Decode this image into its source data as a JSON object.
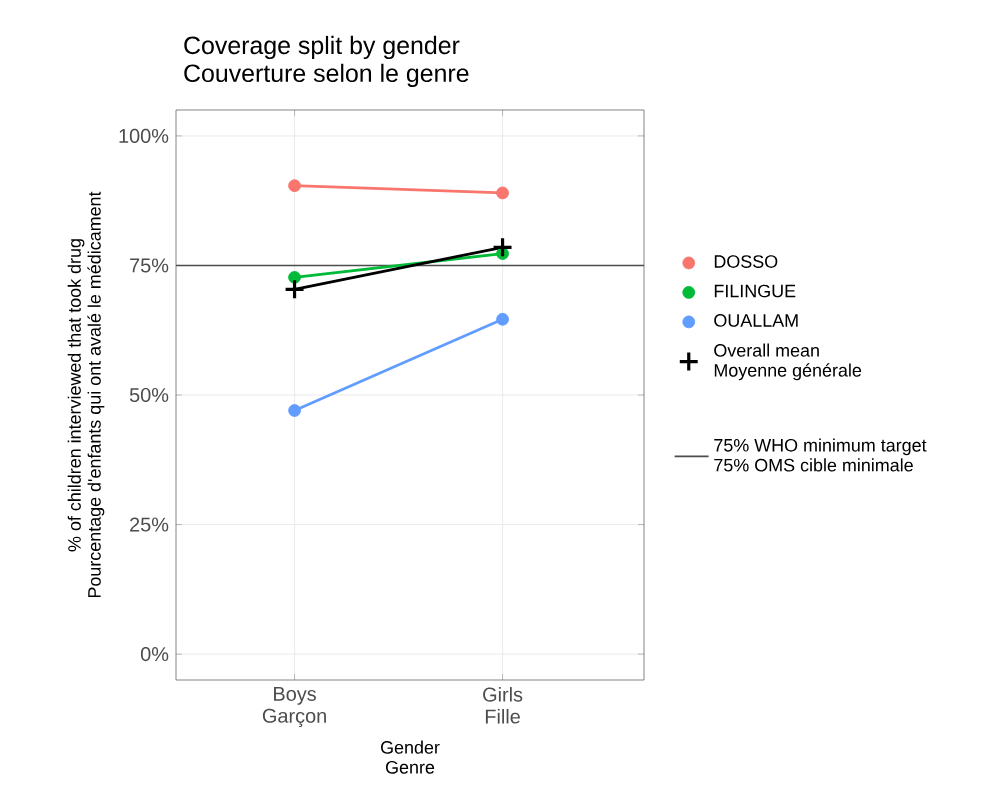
{
  "chart_data": {
    "type": "line",
    "title": "Coverage split by gender\nCouverture selon le genre",
    "xlabel": "Gender\nGenre",
    "ylabel": "% of children interviewed that took drug\nPourcentage d'enfants qui ont avalé le médicament",
    "categories": [
      "Boys\nGarçon",
      "Girls\nFille"
    ],
    "series": [
      {
        "name": "DOSSO",
        "color": "#f8766d",
        "values": [
          90.4,
          89
        ]
      },
      {
        "name": "FILINGUE",
        "color": "#00ba38",
        "values": [
          72.7,
          77.3
        ]
      },
      {
        "name": "OUALLAM",
        "color": "#619cff",
        "values": [
          47,
          64.6
        ]
      },
      {
        "name": "Overall mean\nMoyenne générale",
        "color": "#000000",
        "values": [
          70.4,
          78.5
        ],
        "marker": "cross"
      }
    ],
    "ylim": [
      -5,
      105
    ],
    "yticks": [
      {
        "value": 0,
        "label": "0%"
      },
      {
        "value": 25,
        "label": "25%"
      },
      {
        "value": 50,
        "label": "50%"
      },
      {
        "value": 75,
        "label": "75%"
      },
      {
        "value": 100,
        "label": "100%"
      }
    ],
    "ref_lines": [
      {
        "axis": "y",
        "value": 75,
        "label": "75% WHO minimum target\n75% OMS cible minimale",
        "color": "#4d4d4d"
      }
    ],
    "grid": true,
    "legend": "right",
    "marker": "circle",
    "line_style": "solid"
  }
}
